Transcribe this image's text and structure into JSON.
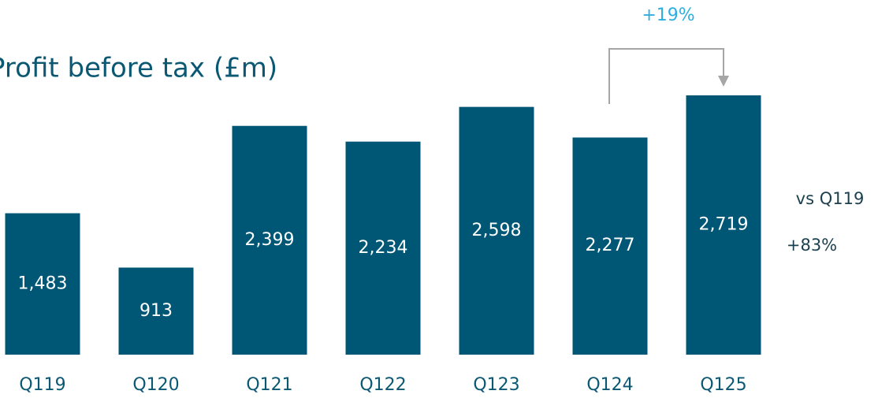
{
  "chart_data": {
    "type": "bar",
    "title": "Profit before tax (£m)",
    "categories": [
      "Q119",
      "Q120",
      "Q121",
      "Q122",
      "Q123",
      "Q124",
      "Q125"
    ],
    "values": [
      1483,
      913,
      2399,
      2234,
      2598,
      2277,
      2719
    ],
    "value_labels": [
      "1,483",
      "913",
      "2,399",
      "2,234",
      "2,598",
      "2,277",
      "2,719"
    ],
    "color": "#005775",
    "annotations": {
      "change": "+19%",
      "compare_label": "vs Q119",
      "compare_value": "+83%"
    }
  }
}
